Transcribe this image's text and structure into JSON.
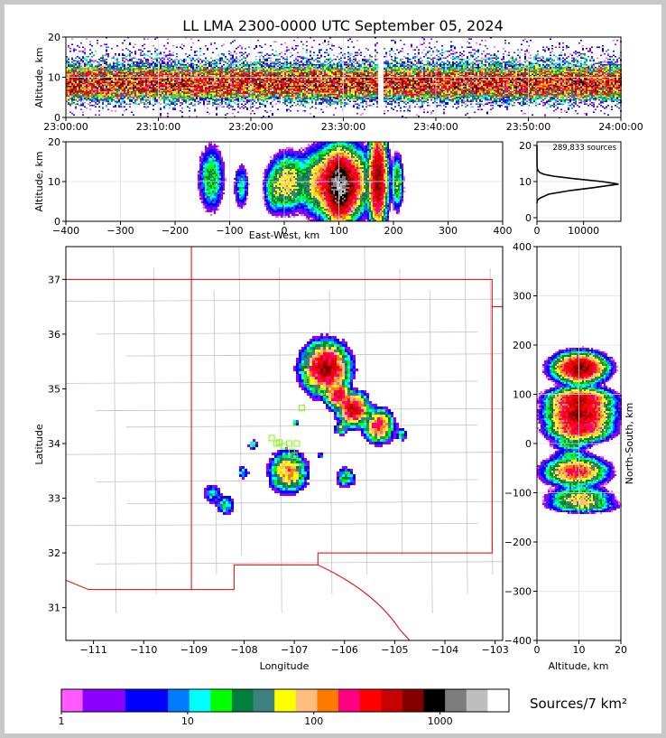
{
  "title": "LL LMA 2300-0000 UTC September 05, 2024",
  "chart_data": [
    {
      "id": "time_height",
      "type": "heatmap",
      "xlabel": "",
      "ylabel": "Altitude, km",
      "x_ticks": [
        "23:00:00",
        "23:10:00",
        "23:20:00",
        "23:30:00",
        "23:40:00",
        "23:50:00",
        "24:00:00"
      ],
      "y_ticks": [
        0,
        10,
        20
      ],
      "xlim": [
        "23:00:00",
        "24:00:00"
      ],
      "ylim": [
        0,
        20
      ],
      "gap": [
        "23:33:45",
        "23:34:15"
      ],
      "profile_altitudes_km": [
        0,
        2,
        4,
        5,
        6,
        7,
        8,
        9,
        10,
        11,
        12,
        13,
        14,
        16,
        18,
        20
      ],
      "profile_density": [
        0.02,
        0.1,
        0.35,
        0.6,
        0.8,
        0.9,
        1.0,
        1.0,
        0.95,
        0.85,
        0.7,
        0.5,
        0.35,
        0.2,
        0.1,
        0.05
      ]
    },
    {
      "id": "ew_altitude",
      "type": "heatmap",
      "xlabel": "East-West, km",
      "ylabel": "Altitude, km",
      "x_ticks": [
        -400,
        -300,
        -200,
        -100,
        0,
        100,
        200,
        300,
        400
      ],
      "y_ticks": [
        0,
        10,
        20
      ],
      "xlim": [
        -400,
        400
      ],
      "ylim": [
        0,
        20
      ],
      "clusters": [
        {
          "x": -135,
          "alt": 11,
          "sx": 10,
          "sa": 3.5,
          "peak": 30
        },
        {
          "x": -80,
          "alt": 9,
          "sx": 6,
          "sa": 2.5,
          "peak": 15
        },
        {
          "x": -20,
          "alt": 8,
          "sx": 8,
          "sa": 2.5,
          "peak": 25
        },
        {
          "x": 5,
          "alt": 10,
          "sx": 15,
          "sa": 3,
          "peak": 80
        },
        {
          "x": 75,
          "alt": 10,
          "sx": 20,
          "sa": 3.5,
          "peak": 150
        },
        {
          "x": 100,
          "alt": 9,
          "sx": 12,
          "sa": 3.5,
          "peak": 1500
        },
        {
          "x": 125,
          "alt": 10,
          "sx": 12,
          "sa": 3.5,
          "peak": 200
        },
        {
          "x": 170,
          "alt": 11,
          "sx": 7,
          "sa": 5,
          "peak": 600
        },
        {
          "x": 205,
          "alt": 10,
          "sx": 5,
          "sa": 3,
          "peak": 40
        }
      ]
    },
    {
      "id": "altitude_histogram",
      "type": "line",
      "annotation": "289,833 sources",
      "xlabel": "",
      "ylabel": "",
      "x_ticks": [
        0,
        10000
      ],
      "y_ticks": [
        0,
        10,
        20
      ],
      "xlim": [
        0,
        18000
      ],
      "ylim": [
        -1,
        21
      ],
      "series": [
        {
          "x": [
            0,
            50,
            200,
            800,
            2500,
            7000,
            12000,
            17500,
            14000,
            8000,
            3500,
            1500,
            600,
            250,
            100,
            40,
            10,
            0
          ],
          "y": [
            4,
            4.5,
            5,
            5.5,
            6.5,
            7.5,
            8.3,
            9.3,
            10,
            10.8,
            11.5,
            12,
            12.5,
            13,
            13.5,
            14,
            15,
            20
          ]
        }
      ]
    },
    {
      "id": "plan_view",
      "type": "heatmap",
      "xlabel": "Longitude",
      "ylabel": "Latitude",
      "x_ticks": [
        -111,
        -110,
        -109,
        -108,
        -107,
        -106,
        -105,
        -104,
        -103
      ],
      "y_ticks": [
        31,
        32,
        33,
        34,
        35,
        36,
        37
      ],
      "xlim": [
        -111.55,
        -102.85
      ],
      "ylim": [
        30.4,
        37.6
      ],
      "clusters": [
        {
          "lon": -106.4,
          "lat": 35.4,
          "s": 0.18,
          "peak": 500
        },
        {
          "lon": -106.15,
          "lat": 34.9,
          "s": 0.1,
          "peak": 300
        },
        {
          "lon": -105.85,
          "lat": 34.65,
          "s": 0.12,
          "peak": 400
        },
        {
          "lon": -105.35,
          "lat": 34.35,
          "s": 0.12,
          "peak": 200
        },
        {
          "lon": -106.1,
          "lat": 34.3,
          "s": 0.05,
          "peak": 60
        },
        {
          "lon": -104.9,
          "lat": 34.2,
          "s": 0.05,
          "peak": 30
        },
        {
          "lon": -107.15,
          "lat": 33.5,
          "s": 0.15,
          "peak": 120
        },
        {
          "lon": -108.65,
          "lat": 33.1,
          "s": 0.08,
          "peak": 15
        },
        {
          "lon": -108.4,
          "lat": 32.9,
          "s": 0.08,
          "peak": 20
        },
        {
          "lon": -108.05,
          "lat": 33.5,
          "s": 0.05,
          "peak": 15
        },
        {
          "lon": -106.0,
          "lat": 33.4,
          "s": 0.08,
          "peak": 30
        },
        {
          "lon": -107.0,
          "lat": 34.4,
          "s": 0.03,
          "peak": 20
        },
        {
          "lon": -107.85,
          "lat": 34.0,
          "s": 0.04,
          "peak": 20
        },
        {
          "lon": -106.5,
          "lat": 33.8,
          "s": 0.03,
          "peak": 10
        }
      ],
      "stations": [
        [
          -106.75,
          35.15
        ],
        [
          -106.45,
          34.95
        ],
        [
          -106.85,
          34.65
        ],
        [
          -107.45,
          34.1
        ],
        [
          -107.35,
          34.0
        ],
        [
          -107.1,
          34.0
        ],
        [
          -106.95,
          34.0
        ],
        [
          -107.05,
          33.85
        ],
        [
          -107.2,
          33.95
        ],
        [
          -107.0,
          33.78
        ],
        [
          -107.3,
          34.02
        ]
      ]
    },
    {
      "id": "ns_altitude",
      "type": "heatmap",
      "xlabel": "Altitude, km",
      "ylabel": "North-South, km",
      "x_ticks": [
        0,
        10,
        20
      ],
      "y_ticks": [
        -400,
        -300,
        -200,
        -100,
        0,
        100,
        200,
        300,
        400
      ],
      "xlim": [
        0,
        20
      ],
      "ylim": [
        -400,
        400
      ],
      "clusters": [
        {
          "ns": 155,
          "alt": 10,
          "sn": 12,
          "sa": 2.5,
          "peak": 600
        },
        {
          "ns": 90,
          "alt": 10,
          "sn": 10,
          "sa": 3,
          "peak": 400
        },
        {
          "ns": 60,
          "alt": 10,
          "sn": 12,
          "sa": 3,
          "peak": 500
        },
        {
          "ns": 30,
          "alt": 10,
          "sn": 10,
          "sa": 3,
          "peak": 250
        },
        {
          "ns": 0,
          "alt": 8,
          "sn": 6,
          "sa": 2,
          "peak": 30
        },
        {
          "ns": -20,
          "alt": 8,
          "sn": 4,
          "sa": 2,
          "peak": 15
        },
        {
          "ns": -55,
          "alt": 9,
          "sn": 12,
          "sa": 3,
          "peak": 200
        },
        {
          "ns": -110,
          "alt": 10,
          "sn": 10,
          "sa": 3,
          "peak": 80
        },
        {
          "ns": -125,
          "alt": 11,
          "sn": 6,
          "sa": 3.5,
          "peak": 30
        }
      ]
    }
  ],
  "colorbar": {
    "label": "Sources/7 km²",
    "tick_labels": [
      "1",
      "10",
      "100",
      "1000"
    ],
    "colors": [
      "#ff5aff",
      "#8c00ff",
      "#8c00ff",
      "#0000ff",
      "#0000ff",
      "#007bff",
      "#00ffff",
      "#00ff00",
      "#00803c",
      "#3c8080",
      "#ffff00",
      "#ffbe7d",
      "#ff7b00",
      "#ff0080",
      "#ff0000",
      "#c80000",
      "#820000",
      "#000000",
      "#7d7d7d",
      "#bebebe",
      "#ffffff"
    ]
  },
  "map_colors": {
    "state_border": "#e00000",
    "county_lines": "#c4c4c4"
  }
}
